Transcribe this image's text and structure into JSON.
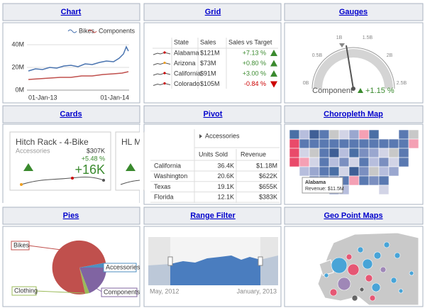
{
  "chart": {
    "title": "Chart",
    "legend": [
      "Bikes",
      "Components"
    ],
    "yticks": [
      "40M",
      "20M",
      "0M"
    ],
    "xticks": [
      "01-Jan-13",
      "01-Jan-14"
    ]
  },
  "grid": {
    "title": "Grid",
    "columns": [
      "State",
      "Sales",
      "Sales vs Target"
    ],
    "rows": [
      [
        "Alabama",
        "$121M",
        "+7.13 %"
      ],
      [
        "Arizona",
        "$73M",
        "+0.80 %"
      ],
      [
        "California",
        "$91M",
        "+3.00 %"
      ],
      [
        "Colorado",
        "$105M",
        "-0.84 %"
      ]
    ]
  },
  "gauges": {
    "title": "Gauges",
    "scale": [
      "0B",
      "0.5B",
      "1B",
      "1.5B",
      "2B",
      "2.5B"
    ],
    "caption": "Component",
    "delta": "+1.15 %"
  },
  "cards": {
    "title": "Cards",
    "card_title": "Hitch Rack - 4-Bike",
    "subtitle": "Accessories",
    "target": "$307K",
    "variation": "+5.48 %",
    "main": "+16K",
    "second_card_title": "HL M"
  },
  "pivot": {
    "title": "Pivot",
    "group": "Accessories",
    "columns": [
      "Units Sold",
      "Revenue"
    ],
    "rows": [
      [
        "California",
        "36.4K",
        "$1.18M"
      ],
      [
        "Washington",
        "20.6K",
        "$622K"
      ],
      [
        "Texas",
        "19.1K",
        "$655K"
      ],
      [
        "Florida",
        "12.1K",
        "$383K"
      ]
    ]
  },
  "choropleth": {
    "title": "Choropleth Map",
    "tooltip_title": "Alabama",
    "tooltip_text": "Revenue: $11.5M"
  },
  "pies": {
    "title": "Pies",
    "labels": [
      "Bikes",
      "Accessories",
      "Clothing",
      "Components"
    ]
  },
  "range_filter": {
    "title": "Range Filter",
    "start": "May, 2012",
    "end": "January, 2013"
  },
  "geo": {
    "title": "Geo Point Maps"
  }
}
